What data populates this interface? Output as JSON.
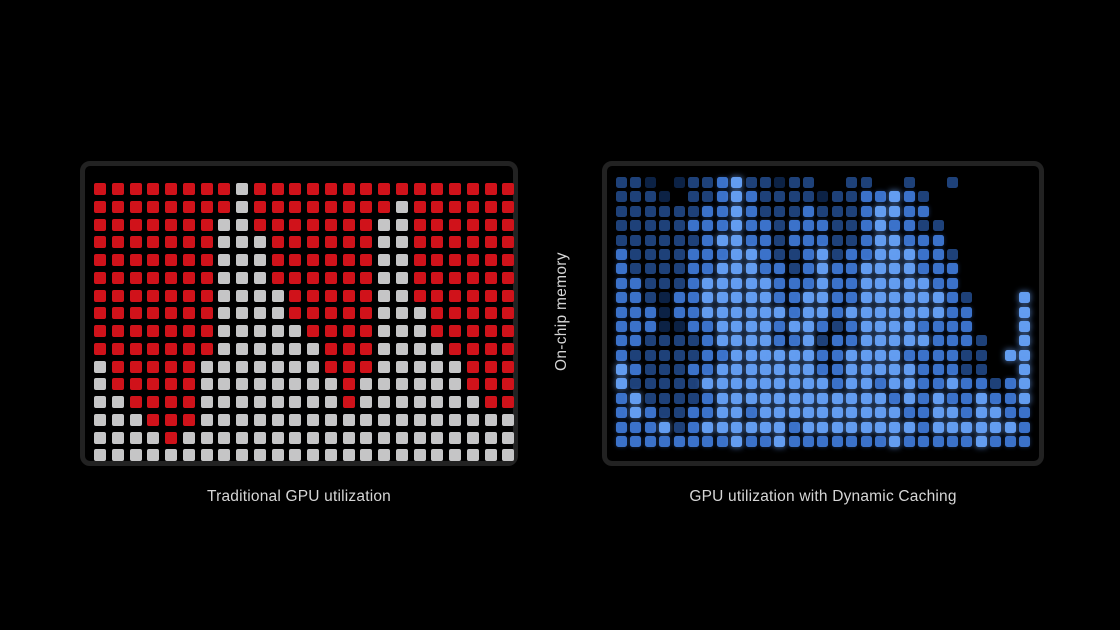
{
  "slide": {
    "background": "#000000",
    "text_color": "#d6d6d6",
    "center_label": "On-chip memory"
  },
  "left_panel": {
    "caption": "Traditional GPU utilization",
    "frame_color": "#222222",
    "cols": 24,
    "rows": 16,
    "palette": {
      "R": "#d0121a",
      "G": "#c5c5c6"
    },
    "rows_data": [
      "RRRRRRRRGRRRRRRRRRRRRRRR",
      "RRRRRRRRGRRRRRRRRGRRRRRR",
      "RRRRRRRGGRRRRRRRGGRRRRRR",
      "RRRRRRRGGGRRRRRRGGRRRRRR",
      "RRRRRRRGGGRRRRRRGGRRRRRR",
      "RRRRRRRGGGRRRRRRGGRRRRRR",
      "RRRRRRRGGGGRRRRRGGRRRRRR",
      "RRRRRRRGGGGRRRRRGGGRRRRR",
      "RRRRRRRGGGGGRRRRGGGRRRRR",
      "RRRRRRRGGGGGGRRRGGGGRRRR",
      "GRRRRRGGGGGGGRRRGGGGGRRR",
      "GRRRRRGGGGGGGGRGGGGGGRRR",
      "GGRRRRGGGGGGGGRGGGGGGGRR",
      "GGGRRRGGGGGGGGGGGGGGGGGG",
      "GGGGRGGGGGGGGGGGGGGGGGGG",
      "GGGGGGGGGGGGGGGGGGGGGGGG"
    ]
  },
  "right_panel": {
    "caption": "GPU utilization with Dynamic Caching",
    "frame_color": "#222222",
    "cols": 29,
    "rows": 19,
    "palette": {
      "0": "transparent",
      "1": "#0c2245",
      "2": "#1e4179",
      "3": "#3b72ca",
      "4": "#639df0"
    },
    "rows_data": [
      "22101223422122002200200200000",
      "22210223432222122334320000000",
      "22222233432223222344330000000",
      "22222333433233322343322000000",
      "22222234433233322344333000000",
      "32222333443223423344433200000",
      "32222334443323433444433300000",
      "33222344444333433444443300000",
      "33213344444334433444444320004",
      "33313344444434434444444330004",
      "33311334444344323444433330004",
      "33222234444334233444443332004",
      "32222233444444334444333322044",
      "43222334444444334444433322004",
      "42222244444444434434433433234",
      "34222234444444444443434334334",
      "34322334434444444444334434433",
      "33342344444434444444434444443",
      "33333333433433333334333334333"
    ]
  }
}
